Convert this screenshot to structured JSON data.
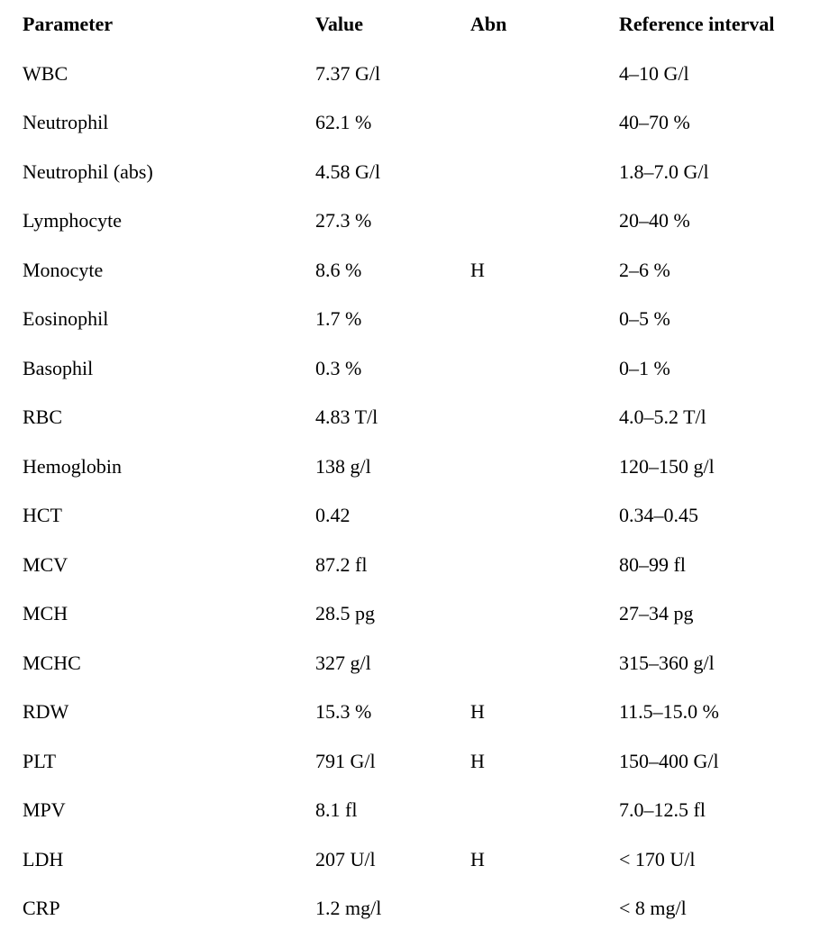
{
  "table": {
    "columns": [
      "Parameter",
      "Value",
      "Abn",
      "Reference interval"
    ],
    "rows": [
      [
        "WBC",
        "7.37 G/l",
        "",
        "4–10 G/l"
      ],
      [
        "Neutrophil",
        "62.1 %",
        "",
        "40–70 %"
      ],
      [
        "Neutrophil (abs)",
        "4.58 G/l",
        "",
        "1.8–7.0 G/l"
      ],
      [
        "Lymphocyte",
        "27.3 %",
        "",
        "20–40 %"
      ],
      [
        "Monocyte",
        "8.6 %",
        "H",
        "2–6 %"
      ],
      [
        "Eosinophil",
        "1.7 %",
        "",
        "0–5 %"
      ],
      [
        "Basophil",
        "0.3 %",
        "",
        "0–1 %"
      ],
      [
        "RBC",
        "4.83 T/l",
        "",
        "4.0–5.2 T/l"
      ],
      [
        "Hemoglobin",
        "138 g/l",
        "",
        "120–150 g/l"
      ],
      [
        "HCT",
        "0.42",
        "",
        "0.34–0.45"
      ],
      [
        "MCV",
        "87.2 fl",
        "",
        "80–99 fl"
      ],
      [
        "MCH",
        "28.5 pg",
        "",
        "27–34 pg"
      ],
      [
        "MCHC",
        "327 g/l",
        "",
        "315–360 g/l"
      ],
      [
        "RDW",
        "15.3 %",
        "H",
        "11.5–15.0 %"
      ],
      [
        "PLT",
        "791 G/l",
        "H",
        "150–400 G/l"
      ],
      [
        "MPV",
        "8.1 fl",
        "",
        "7.0–12.5 fl"
      ],
      [
        "LDH",
        "207 U/l",
        "H",
        "< 170 U/l"
      ],
      [
        "CRP",
        "1.2 mg/l",
        "",
        "< 8 mg/l"
      ]
    ]
  }
}
